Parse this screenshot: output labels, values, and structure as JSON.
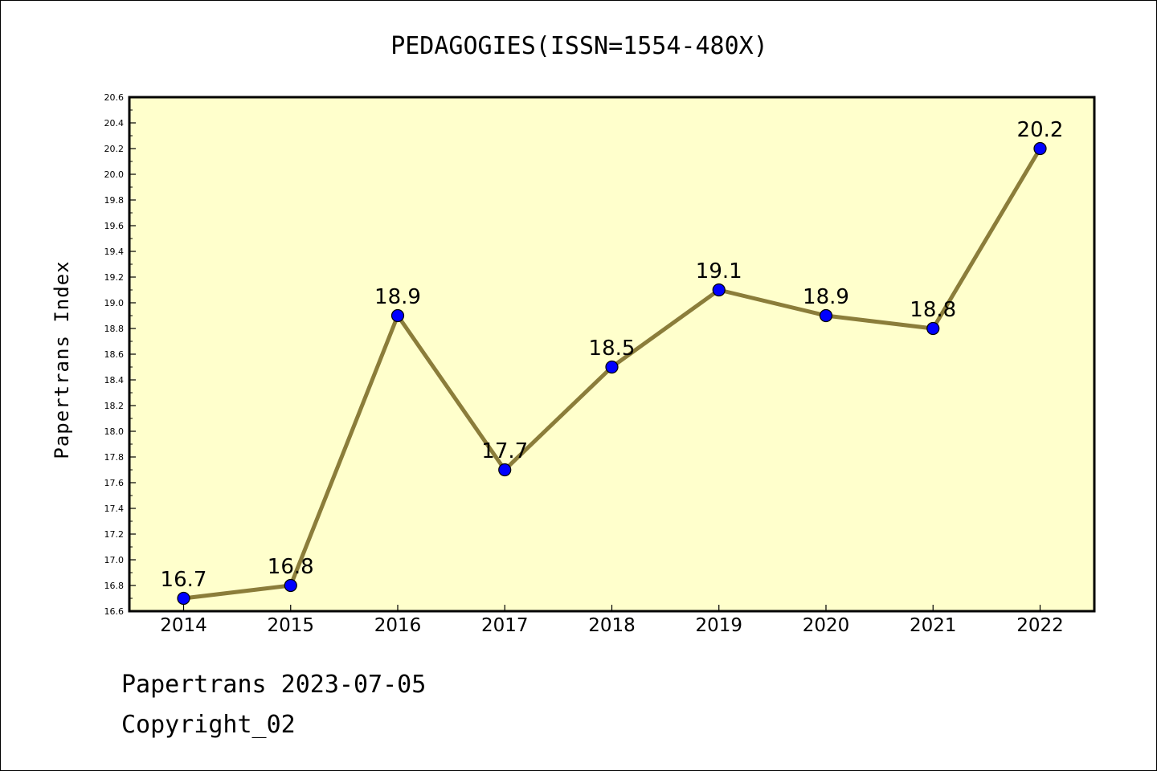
{
  "chart_data": {
    "type": "line",
    "title": "PEDAGOGIES(ISSN=1554-480X)",
    "xlabel": "",
    "ylabel": "Papertrans Index",
    "categories": [
      "2014",
      "2015",
      "2016",
      "2017",
      "2018",
      "2019",
      "2020",
      "2021",
      "2022"
    ],
    "series": [
      {
        "values": [
          16.7,
          16.8,
          18.9,
          17.7,
          18.5,
          19.1,
          18.9,
          18.8,
          20.2
        ],
        "labels": [
          "16.7",
          "16.8",
          "18.9",
          "17.7",
          "18.5",
          "19.1",
          "18.9",
          "18.8",
          "20.2"
        ]
      }
    ],
    "ylim": [
      16.6,
      20.6
    ],
    "yticks": [
      "16.6",
      "16.8",
      "17.0",
      "17.2",
      "17.4",
      "17.6",
      "17.8",
      "18.0",
      "18.2",
      "18.4",
      "18.6",
      "18.8",
      "19.0",
      "19.2",
      "19.4",
      "19.6",
      "19.8",
      "20.0",
      "20.2",
      "20.4",
      "20.6"
    ],
    "grid": false,
    "legend": "none",
    "colors": {
      "plot_background": "#ffffcc",
      "line": "#8b7d3a",
      "marker": "#0000ff",
      "axes": "#000000"
    }
  },
  "footer": {
    "line1": "Papertrans 2023-07-05",
    "line2": "Copyright_02"
  }
}
